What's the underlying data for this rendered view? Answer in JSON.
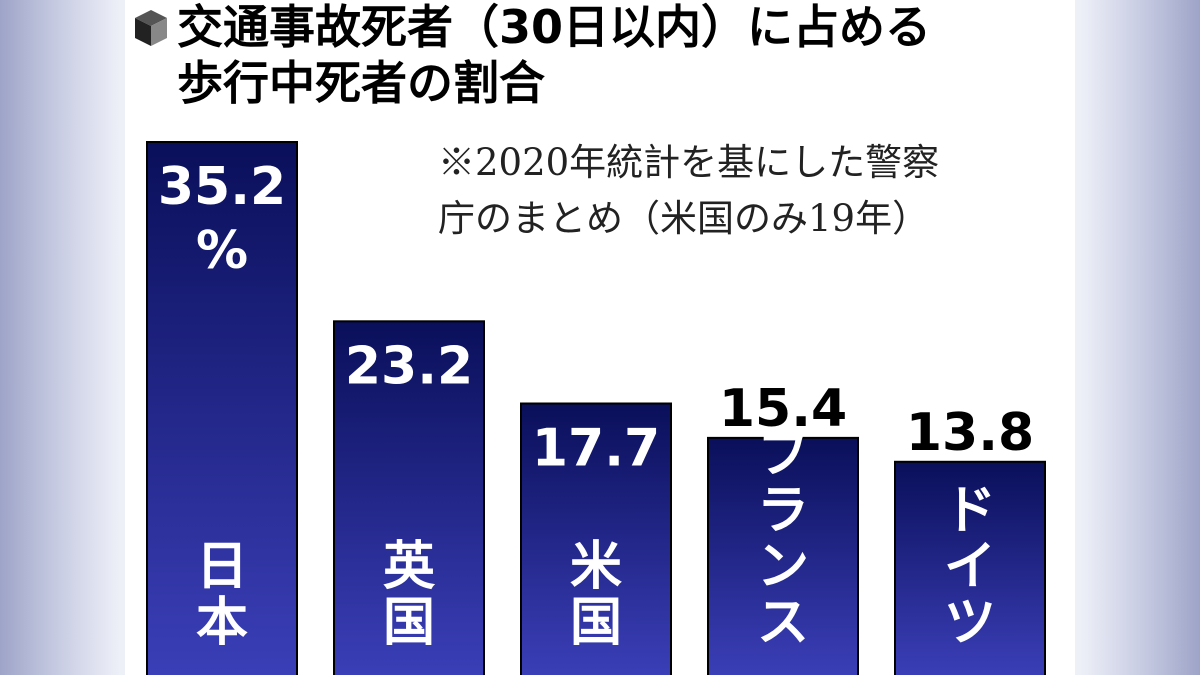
{
  "title": {
    "line1": "交通事故死者（30日以内）に占める",
    "line2": "歩行中死者の割合"
  },
  "note": {
    "line1": "※2020年統計を基にした警察",
    "line2": "庁のまとめ（米国のみ19年）"
  },
  "colors": {
    "bar_top": "#0a0f5a",
    "bar_bottom": "#3b3fb8",
    "value_inside": "#ffffff",
    "value_outside": "#000000"
  },
  "chart_data": {
    "type": "bar",
    "title": "交通事故死者（30日以内）に占める歩行中死者の割合",
    "categories": [
      "日本",
      "英国",
      "米国",
      "フランス",
      "ドイツ"
    ],
    "values": [
      35.2,
      23.2,
      17.7,
      15.4,
      13.8
    ],
    "value_labels": [
      "35.2",
      "23.2",
      "17.7",
      "15.4",
      "13.8"
    ],
    "unit": "%",
    "xlabel": "",
    "ylabel": "",
    "ylim": [
      0,
      35.2
    ],
    "grid": false,
    "legend": "none"
  }
}
